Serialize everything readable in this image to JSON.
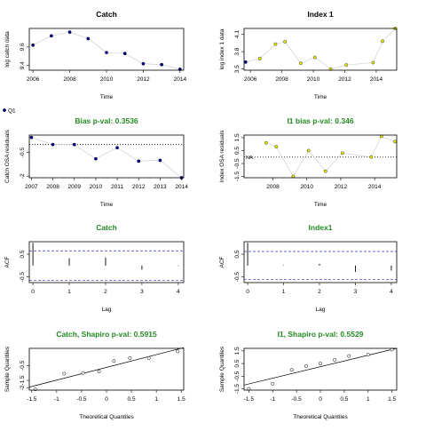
{
  "chart_data": [
    {
      "type": "line",
      "title": "Catch",
      "title_color": "#000000",
      "xlabel": "Time",
      "ylabel": "log catch data",
      "xlim": [
        2005.8,
        2014.2
      ],
      "ylim": [
        9.35,
        9.8
      ],
      "xticks": [
        2006,
        2008,
        2010,
        2012,
        2014
      ],
      "yticks": [
        9.4,
        9.6
      ],
      "series": [
        {
          "x": [
            2006,
            2007,
            2008,
            2009,
            2010,
            2011,
            2012,
            2013,
            2014
          ],
          "values": [
            9.62,
            9.72,
            9.76,
            9.69,
            9.54,
            9.53,
            9.42,
            9.41,
            9.36
          ],
          "point_colors": [
            "#00008b",
            "#00008b",
            "#00008b",
            "#00008b",
            "#00008b",
            "#00008b",
            "#00008b",
            "#00008b",
            "#00008b"
          ]
        }
      ]
    },
    {
      "type": "line",
      "title": "Index 1",
      "title_color": "#000000",
      "xlabel": "Time",
      "ylabel": "log index 1 data",
      "xlim": [
        2005.6,
        2015.3
      ],
      "ylim": [
        3.48,
        4.2
      ],
      "xticks": [
        2006,
        2008,
        2010,
        2012,
        2014
      ],
      "yticks": [
        3.5,
        3.8,
        4.1
      ],
      "series": [
        {
          "x": [
            2005.7,
            2006.6,
            2007.6,
            2008.2,
            2009.2,
            2010.1,
            2011.1,
            2012.1,
            2013.8,
            2014.4,
            2015.2
          ],
          "values": [
            3.62,
            3.68,
            3.93,
            3.97,
            3.6,
            3.7,
            3.5,
            3.57,
            3.61,
            3.98,
            4.2
          ],
          "point_colors": [
            "#00008b",
            "#e6e600",
            "#e6e600",
            "#e6e600",
            "#e6e600",
            "#e6e600",
            "#e6e600",
            "#e6e600",
            "#e6e600",
            "#e6e600",
            "#e6e600"
          ]
        }
      ],
      "legend": [
        "Q1"
      ],
      "legend_placement": "left margin"
    },
    {
      "type": "line",
      "title": "Bias p-val: 0.3536",
      "title_color": "#228b22",
      "xlabel": "Time",
      "ylabel": "Catch OSA residuals",
      "xlim": [
        2006.9,
        2014.1
      ],
      "ylim": [
        -2.1,
        0.6
      ],
      "xticks": [
        2007,
        2008,
        2009,
        2010,
        2011,
        2012,
        2013,
        2014
      ],
      "yticks": [
        -2.0,
        -0.5
      ],
      "hline": 0,
      "series": [
        {
          "x": [
            2007,
            2008,
            2009,
            2010,
            2011,
            2012,
            2013,
            2014
          ],
          "values": [
            0.45,
            0.0,
            0.0,
            -0.9,
            -0.2,
            -1.05,
            -1.0,
            -2.1
          ],
          "point_colors": [
            "#00008b",
            "#00008b",
            "#00008b",
            "#00008b",
            "#00008b",
            "#00008b",
            "#00008b",
            "#00008b"
          ]
        }
      ]
    },
    {
      "type": "line",
      "title": "I1 bias p-val: 0.346",
      "title_color": "#228b22",
      "xlabel": "Time",
      "ylabel": "Index OSA residuals",
      "xlim": [
        2006.3,
        2015.3
      ],
      "ylim": [
        -1.6,
        1.7
      ],
      "xticks": [
        2008,
        2010,
        2012,
        2014
      ],
      "yticks": [
        -1.5,
        -0.5,
        0.5,
        1.5
      ],
      "hline": 0,
      "annotation": "NA",
      "series": [
        {
          "x": [
            2007.6,
            2008.2,
            2009.2,
            2010.1,
            2011.1,
            2012.1,
            2013.8,
            2014.4,
            2015.2
          ],
          "values": [
            1.1,
            0.8,
            -1.5,
            0.5,
            -1.1,
            0.3,
            0.0,
            1.6,
            1.2
          ],
          "point_colors": [
            "#e6e600",
            "#e6e600",
            "#e6e600",
            "#e6e600",
            "#e6e600",
            "#e6e600",
            "#e6e600",
            "#e6e600",
            "#e6e600"
          ]
        }
      ]
    },
    {
      "type": "bar",
      "subtype": "acf",
      "title": "Catch",
      "title_color": "#228b22",
      "xlabel": "Lag",
      "ylabel": "ACF",
      "xlim": [
        -0.1,
        4.15
      ],
      "ylim": [
        -0.75,
        1.05
      ],
      "xticks": [
        0,
        1,
        2,
        3,
        4
      ],
      "yticks": [
        -0.5,
        0.5
      ],
      "conf_band": 0.65,
      "lags": [
        0,
        1,
        2,
        3,
        4
      ],
      "values": [
        1.0,
        0.32,
        0.35,
        -0.18,
        -0.02
      ]
    },
    {
      "type": "bar",
      "subtype": "acf",
      "title": "Index1",
      "title_color": "#228b22",
      "xlabel": "Lag",
      "ylabel": "ACF",
      "xlim": [
        -0.1,
        4.15
      ],
      "ylim": [
        -0.75,
        1.05
      ],
      "xticks": [
        0,
        1,
        2,
        3,
        4
      ],
      "yticks": [
        -0.5,
        0.5
      ],
      "conf_band": 0.62,
      "lags": [
        0,
        1,
        2,
        3,
        4
      ],
      "values": [
        1.0,
        0.02,
        0.08,
        -0.28,
        -0.22
      ]
    },
    {
      "type": "scatter",
      "subtype": "qq",
      "title": "Catch, Shapiro p-val: 0.5915",
      "title_color": "#228b22",
      "xlabel": "Theoretical Quantiles",
      "ylabel": "Sample Quantiles",
      "xlim": [
        -1.55,
        1.55
      ],
      "ylim": [
        -2.15,
        0.65
      ],
      "xticks": [
        -1.5,
        -1.0,
        -0.5,
        0.0,
        0.5,
        1.0,
        1.5
      ],
      "yticks": [
        -2.0,
        -1.5,
        -0.5
      ],
      "qq_line": [
        [
          -1.55,
          -1.95
        ],
        [
          1.55,
          0.7
        ]
      ],
      "x": [
        -1.43,
        -0.85,
        -0.47,
        -0.15,
        0.15,
        0.47,
        0.85,
        1.43
      ],
      "values": [
        -2.1,
        -1.05,
        -1.0,
        -0.9,
        -0.2,
        0.0,
        0.0,
        0.45
      ]
    },
    {
      "type": "scatter",
      "subtype": "qq",
      "title": "I1, Shapiro p-val: 0.5529",
      "title_color": "#228b22",
      "xlabel": "Theoretical Quantiles",
      "ylabel": "Sample Quantiles",
      "xlim": [
        -1.6,
        1.6
      ],
      "ylim": [
        -1.6,
        1.7
      ],
      "xticks": [
        -1.5,
        -1.0,
        -0.5,
        0.0,
        0.5,
        1.0,
        1.5
      ],
      "yticks": [
        -1.5,
        -0.5,
        0.5,
        1.5
      ],
      "qq_line": [
        [
          -1.6,
          -1.2
        ],
        [
          1.6,
          1.7
        ]
      ],
      "x": [
        -1.5,
        -1.0,
        -0.6,
        -0.3,
        0.0,
        0.3,
        0.6,
        1.0,
        1.5
      ],
      "values": [
        -1.5,
        -1.1,
        0.0,
        0.3,
        0.5,
        0.8,
        1.1,
        1.2,
        1.6
      ]
    }
  ]
}
